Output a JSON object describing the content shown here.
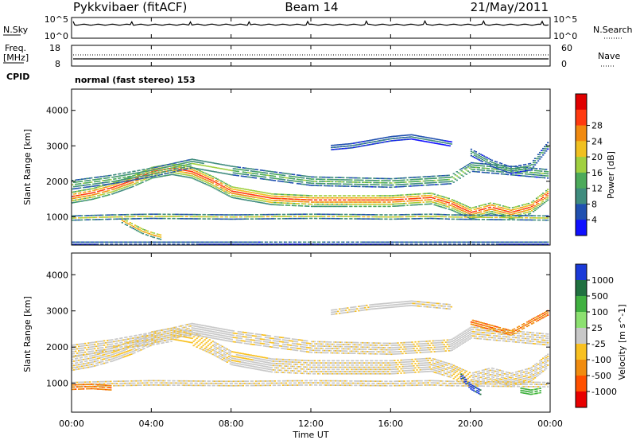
{
  "header": {
    "station": "Pykkvibaer (fitACF)",
    "beam": "Beam 14",
    "date": "21/May/2011"
  },
  "top_panels": {
    "nsky_label": "N.Sky",
    "nsky_ticks": [
      "10^5",
      "10^0"
    ],
    "nsearch_label": "N.Search",
    "freq_label_line1": "Freq.",
    "freq_label_line2": "[MHz]",
    "freq_ticks": [
      "18",
      "8"
    ],
    "nave_label": "Nave",
    "nave_ticks": [
      "60",
      "0"
    ],
    "cpid_label": "CPID",
    "cpid_text": "normal (fast stereo) 153"
  },
  "chart_data": [
    {
      "type": "heatmap",
      "name": "power",
      "ylabel": "Slant Range [km]",
      "xlabel": "",
      "ylim": [
        200,
        4600
      ],
      "xlim": [
        0,
        24
      ],
      "y_ticks": [
        "1000",
        "2000",
        "3000",
        "4000"
      ],
      "colorbar": {
        "label": "Power [dB]",
        "ticks": [
          "4",
          "8",
          "12",
          "16",
          "20",
          "24",
          "28"
        ],
        "colors": [
          "#1010ff",
          "#2050b0",
          "#3f8c7e",
          "#4caa5a",
          "#a0d040",
          "#f0c020",
          "#f08a10",
          "#ff3a10",
          "#e00000"
        ]
      },
      "bands": [
        {
          "t": [
            0,
            1,
            2,
            3,
            4,
            5,
            6,
            7,
            8,
            10,
            12,
            14,
            16,
            18,
            19,
            20,
            21,
            22,
            23,
            24
          ],
          "r": [
            1550,
            1650,
            1800,
            2000,
            2250,
            2350,
            2250,
            2000,
            1700,
            1500,
            1450,
            1450,
            1450,
            1520,
            1350,
            1100,
            1250,
            1100,
            1250,
            1700
          ],
          "w": 170,
          "level": 28
        },
        {
          "t": [
            0,
            2,
            4,
            6,
            8,
            12,
            16,
            19,
            20,
            22,
            24
          ],
          "r": [
            1900,
            2050,
            2250,
            2500,
            2300,
            2000,
            1950,
            2050,
            2400,
            2300,
            2200
          ],
          "w": 130,
          "level": 12
        },
        {
          "t": [
            0,
            2,
            4,
            8,
            12,
            16,
            18,
            19,
            24
          ],
          "r": [
            950,
            980,
            1000,
            980,
            1000,
            980,
            1000,
            980,
            950
          ],
          "w": 60,
          "level": 16
        },
        {
          "t": [
            2.5,
            3,
            3.5,
            4,
            4.5
          ],
          "r": [
            900,
            750,
            600,
            500,
            420
          ],
          "w": 80,
          "level": 24
        },
        {
          "t": [
            13,
            14,
            15,
            16,
            17,
            18,
            19
          ],
          "r": [
            2950,
            3000,
            3100,
            3200,
            3250,
            3150,
            3050
          ],
          "w": 70,
          "level": 6
        },
        {
          "t": [
            20,
            21,
            22,
            23,
            24
          ],
          "r": [
            2800,
            2500,
            2300,
            2400,
            3100
          ],
          "w": 90,
          "level": 10
        },
        {
          "t": [
            0,
            6,
            12,
            18,
            24
          ],
          "r": [
            250,
            250,
            250,
            250,
            250
          ],
          "w": 40,
          "level": 6
        }
      ]
    },
    {
      "type": "heatmap",
      "name": "velocity",
      "ylabel": "Slant Range [km]",
      "xlabel": "Time UT",
      "ylim": [
        200,
        4600
      ],
      "xlim": [
        0,
        24
      ],
      "y_ticks": [
        "1000",
        "2000",
        "3000",
        "4000"
      ],
      "x_ticks": [
        "00:00",
        "04:00",
        "08:00",
        "12:00",
        "16:00",
        "20:00",
        "00:00"
      ],
      "colorbar": {
        "label": "Velocity [m s^-1]",
        "ticks": [
          "1000",
          "500",
          "100",
          "25",
          "-25",
          "-100",
          "-500",
          "-1000"
        ],
        "colors": [
          "#1a3ad8",
          "#207040",
          "#40b040",
          "#8ce070",
          "#c8c8c8",
          "#f8c020",
          "#f08c10",
          "#ff5000",
          "#e80000"
        ]
      },
      "bands": [
        {
          "t": [
            0,
            1,
            2,
            3,
            4,
            5,
            6,
            7,
            8,
            10,
            12,
            14,
            16,
            18,
            19,
            20,
            21,
            22,
            23,
            24
          ],
          "r": [
            1550,
            1650,
            1800,
            2000,
            2250,
            2350,
            2250,
            2000,
            1700,
            1500,
            1450,
            1450,
            1450,
            1520,
            1350,
            1100,
            1250,
            1100,
            1250,
            1700
          ],
          "w": 200,
          "level": 4
        },
        {
          "t": [
            0,
            2,
            4,
            6,
            8,
            12,
            16,
            19,
            20,
            22,
            24
          ],
          "r": [
            1900,
            2050,
            2250,
            2500,
            2300,
            2000,
            1950,
            2050,
            2400,
            2300,
            2200
          ],
          "w": 160,
          "level": 4
        },
        {
          "t": [
            0,
            2,
            4,
            8,
            12,
            16,
            18,
            19,
            24
          ],
          "r": [
            950,
            980,
            1000,
            980,
            1000,
            980,
            1000,
            980,
            950
          ],
          "w": 60,
          "level": 4
        },
        {
          "t": [
            0,
            1,
            2
          ],
          "r": [
            880,
            900,
            860
          ],
          "w": 60,
          "level": 6
        },
        {
          "t": [
            19.5,
            20,
            20.5
          ],
          "r": [
            1200,
            900,
            750
          ],
          "w": 80,
          "level": 0
        },
        {
          "t": [
            22.5,
            23,
            23.5
          ],
          "r": [
            800,
            750,
            800
          ],
          "w": 70,
          "level": 2
        },
        {
          "t": [
            13,
            15,
            17,
            19
          ],
          "r": [
            2950,
            3100,
            3200,
            3100
          ],
          "w": 60,
          "level": 4
        },
        {
          "t": [
            20,
            22,
            24
          ],
          "r": [
            2700,
            2400,
            3000
          ],
          "w": 80,
          "level": 6
        }
      ]
    }
  ]
}
